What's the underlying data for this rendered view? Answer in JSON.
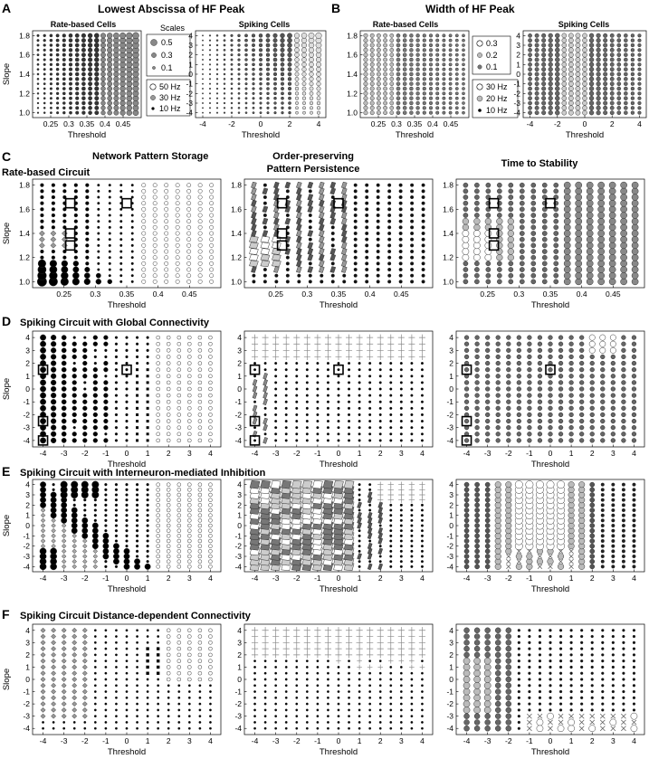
{
  "figure": {
    "panel_letters": [
      "A",
      "B",
      "C",
      "D",
      "E",
      "F"
    ],
    "row_titles": {
      "A": "Lowest Abscissa of HF Peak",
      "B": "Width of HF Peak",
      "C_left": "Network Pattern Storage",
      "C_mid_1": "Order-preserving",
      "C_mid_2": "Pattern Persistence",
      "C_right": "Time to Stability",
      "C_sub": "Rate-based Circuit",
      "D": "Spiking Circuit with Global Connectivity",
      "E": "Spiking Circuit with Interneuron-mediated Inhibition",
      "F": "Spiking Circuit Distance-dependent Connectivity"
    },
    "sub_titles": {
      "A_left": "Rate-based Cells",
      "A_right": "Spiking Cells",
      "B_left": "Rate-based Cells",
      "B_right": "Spiking Cells"
    },
    "legends": {
      "A_scales_title": "Scales",
      "A_scales": [
        "0.5",
        "0.3",
        "0.1"
      ],
      "A_hz": [
        "50 Hz",
        "30 Hz",
        "10 Hz"
      ],
      "B_scales": [
        "0.3",
        "0.2",
        "0.1"
      ],
      "B_hz": [
        "30 Hz",
        "20 Hz",
        "10 Hz"
      ]
    },
    "axis_labels": {
      "x": "Threshold",
      "y": "Slope"
    },
    "ticks": {
      "rate_x": [
        "0.25",
        "0.3",
        "0.35",
        "0.4",
        "0.45"
      ],
      "rate_y": [
        "1.0",
        "1.2",
        "1.4",
        "1.6",
        "1.8"
      ],
      "spike_x": [
        "-4",
        "-2",
        "0",
        "2",
        "4"
      ],
      "spike_x_full": [
        "-4",
        "-3",
        "-2",
        "-1",
        "0",
        "1",
        "2",
        "3",
        "4"
      ],
      "spike_y": [
        "-4",
        "-3",
        "-2",
        "-1",
        "0",
        "1",
        "2",
        "3",
        "4"
      ]
    }
  },
  "chart_data": [
    {
      "id": "A-rate",
      "type": "scatter",
      "title": "Rate-based Cells",
      "xlabel": "Threshold",
      "ylabel": "Slope",
      "xlim": [
        0.2,
        0.5
      ],
      "ylim": [
        0.95,
        1.85
      ],
      "grid": false,
      "x": "threshold grid 0.2-0.5",
      "y": "slope grid 1.0-1.8"
    },
    {
      "id": "A-spike",
      "type": "scatter",
      "title": "Spiking Cells",
      "xlabel": "Threshold",
      "ylabel": "",
      "xlim": [
        -4.5,
        4.5
      ],
      "ylim": [
        -4.5,
        4.5
      ],
      "grid": false
    },
    {
      "id": "B-rate",
      "type": "scatter",
      "title": "Rate-based Cells",
      "xlabel": "Threshold",
      "ylabel": "",
      "xlim": [
        0.2,
        0.5
      ],
      "ylim": [
        0.95,
        1.85
      ],
      "grid": false
    },
    {
      "id": "B-spike",
      "type": "scatter",
      "title": "Spiking Cells",
      "xlabel": "Threshold",
      "ylabel": "",
      "xlim": [
        -4.5,
        4.5
      ],
      "ylim": [
        -4.5,
        4.5
      ],
      "grid": false
    },
    {
      "id": "C1",
      "type": "scatter",
      "title": "Network Pattern Storage",
      "xlabel": "Threshold",
      "ylabel": "Slope",
      "xlim": [
        0.2,
        0.5
      ],
      "ylim": [
        0.95,
        1.85
      ],
      "highlighted": [
        [
          0.26,
          1.65
        ],
        [
          0.35,
          1.65
        ],
        [
          0.26,
          1.4
        ],
        [
          0.26,
          1.3
        ]
      ]
    },
    {
      "id": "C2",
      "type": "scatter",
      "title": "Order-preserving Pattern Persistence",
      "xlabel": "Threshold",
      "ylabel": "",
      "xlim": [
        0.2,
        0.5
      ],
      "ylim": [
        0.95,
        1.85
      ],
      "highlighted": [
        [
          0.26,
          1.65
        ],
        [
          0.35,
          1.65
        ],
        [
          0.26,
          1.4
        ],
        [
          0.26,
          1.3
        ]
      ]
    },
    {
      "id": "C3",
      "type": "scatter",
      "title": "Time to Stability",
      "xlabel": "Threshold",
      "ylabel": "",
      "xlim": [
        0.2,
        0.5
      ],
      "ylim": [
        0.95,
        1.85
      ],
      "highlighted": [
        [
          0.26,
          1.65
        ],
        [
          0.35,
          1.65
        ],
        [
          0.26,
          1.4
        ],
        [
          0.26,
          1.3
        ]
      ]
    },
    {
      "id": "D1",
      "type": "scatter",
      "xlabel": "Threshold",
      "ylabel": "Slope",
      "xlim": [
        -4.5,
        4.5
      ],
      "ylim": [
        -4.5,
        4.5
      ],
      "highlighted": [
        [
          -4,
          1.5
        ],
        [
          0,
          1.5
        ],
        [
          -4,
          -2.5
        ],
        [
          -4,
          -4
        ]
      ]
    },
    {
      "id": "D2",
      "type": "scatter",
      "xlabel": "Threshold",
      "ylabel": "",
      "xlim": [
        -4.5,
        4.5
      ],
      "ylim": [
        -4.5,
        4.5
      ],
      "highlighted": [
        [
          -4,
          1.5
        ],
        [
          0,
          1.5
        ],
        [
          -4,
          -2.5
        ],
        [
          -4,
          -4
        ]
      ]
    },
    {
      "id": "D3",
      "type": "scatter",
      "xlabel": "Threshold",
      "ylabel": "",
      "xlim": [
        -4.5,
        4.5
      ],
      "ylim": [
        -4.5,
        4.5
      ],
      "highlighted": [
        [
          -4,
          1.5
        ],
        [
          0,
          1.5
        ],
        [
          -4,
          -2.5
        ],
        [
          -4,
          -4
        ]
      ]
    },
    {
      "id": "E1",
      "type": "scatter",
      "xlabel": "Threshold",
      "ylabel": "Slope",
      "xlim": [
        -4.5,
        4.5
      ],
      "ylim": [
        -4.5,
        4.5
      ]
    },
    {
      "id": "E2",
      "type": "scatter",
      "xlabel": "Threshold",
      "ylabel": "",
      "xlim": [
        -4.5,
        4.5
      ],
      "ylim": [
        -4.5,
        4.5
      ]
    },
    {
      "id": "E3",
      "type": "scatter",
      "xlabel": "Threshold",
      "ylabel": "",
      "xlim": [
        -4.5,
        4.5
      ],
      "ylim": [
        -4.5,
        4.5
      ]
    },
    {
      "id": "F1",
      "type": "scatter",
      "xlabel": "Threshold",
      "ylabel": "Slope",
      "xlim": [
        -4.5,
        4.5
      ],
      "ylim": [
        -4.5,
        4.5
      ]
    },
    {
      "id": "F2",
      "type": "scatter",
      "xlabel": "Threshold",
      "ylabel": "",
      "xlim": [
        -4.5,
        4.5
      ],
      "ylim": [
        -4.5,
        4.5
      ]
    },
    {
      "id": "F3",
      "type": "scatter",
      "xlabel": "Threshold",
      "ylabel": "",
      "xlim": [
        -4.5,
        4.5
      ],
      "ylim": [
        -4.5,
        4.5
      ]
    }
  ]
}
